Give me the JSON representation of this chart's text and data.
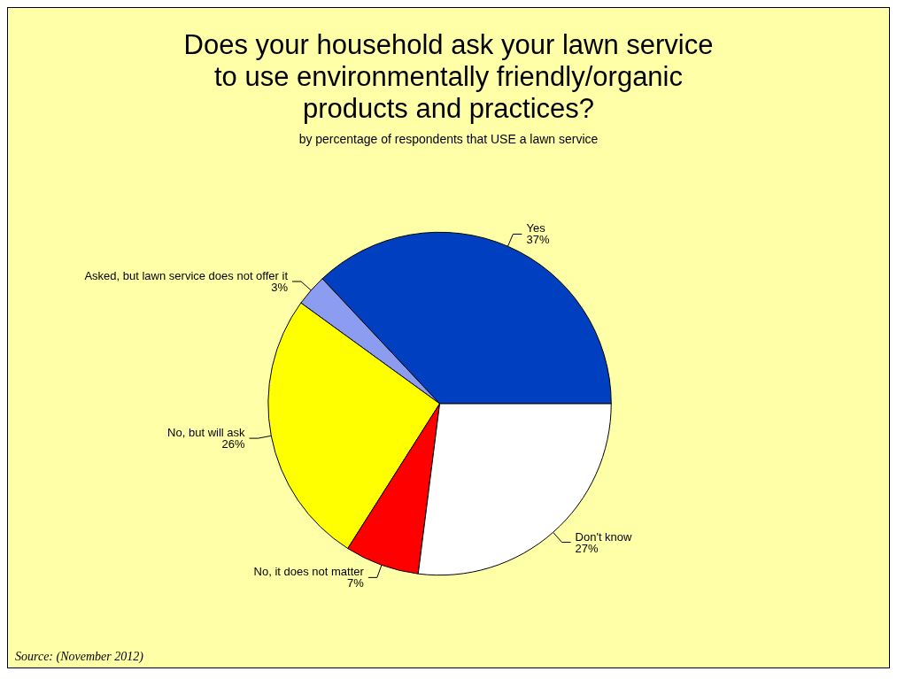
{
  "chart_data": {
    "type": "pie",
    "title": "Does your household ask your lawn service\nto use environmentally friendly/organic\nproducts and practices?",
    "subtitle": "by percentage of respondents that USE a lawn service",
    "categories": [
      "Yes",
      "Asked, but lawn service does not offer it",
      "No, but will ask",
      "No, it does not matter",
      "Don't know"
    ],
    "values": [
      37,
      3,
      26,
      7,
      27
    ],
    "value_labels": [
      "37%",
      "3%",
      "26%",
      "7%",
      "27%"
    ],
    "colors": [
      "#0040c0",
      "#8c9cf0",
      "#ffff00",
      "#ff0000",
      "#ffffff"
    ],
    "legend": false,
    "annotations": [
      "Source: (November 2012)"
    ]
  }
}
